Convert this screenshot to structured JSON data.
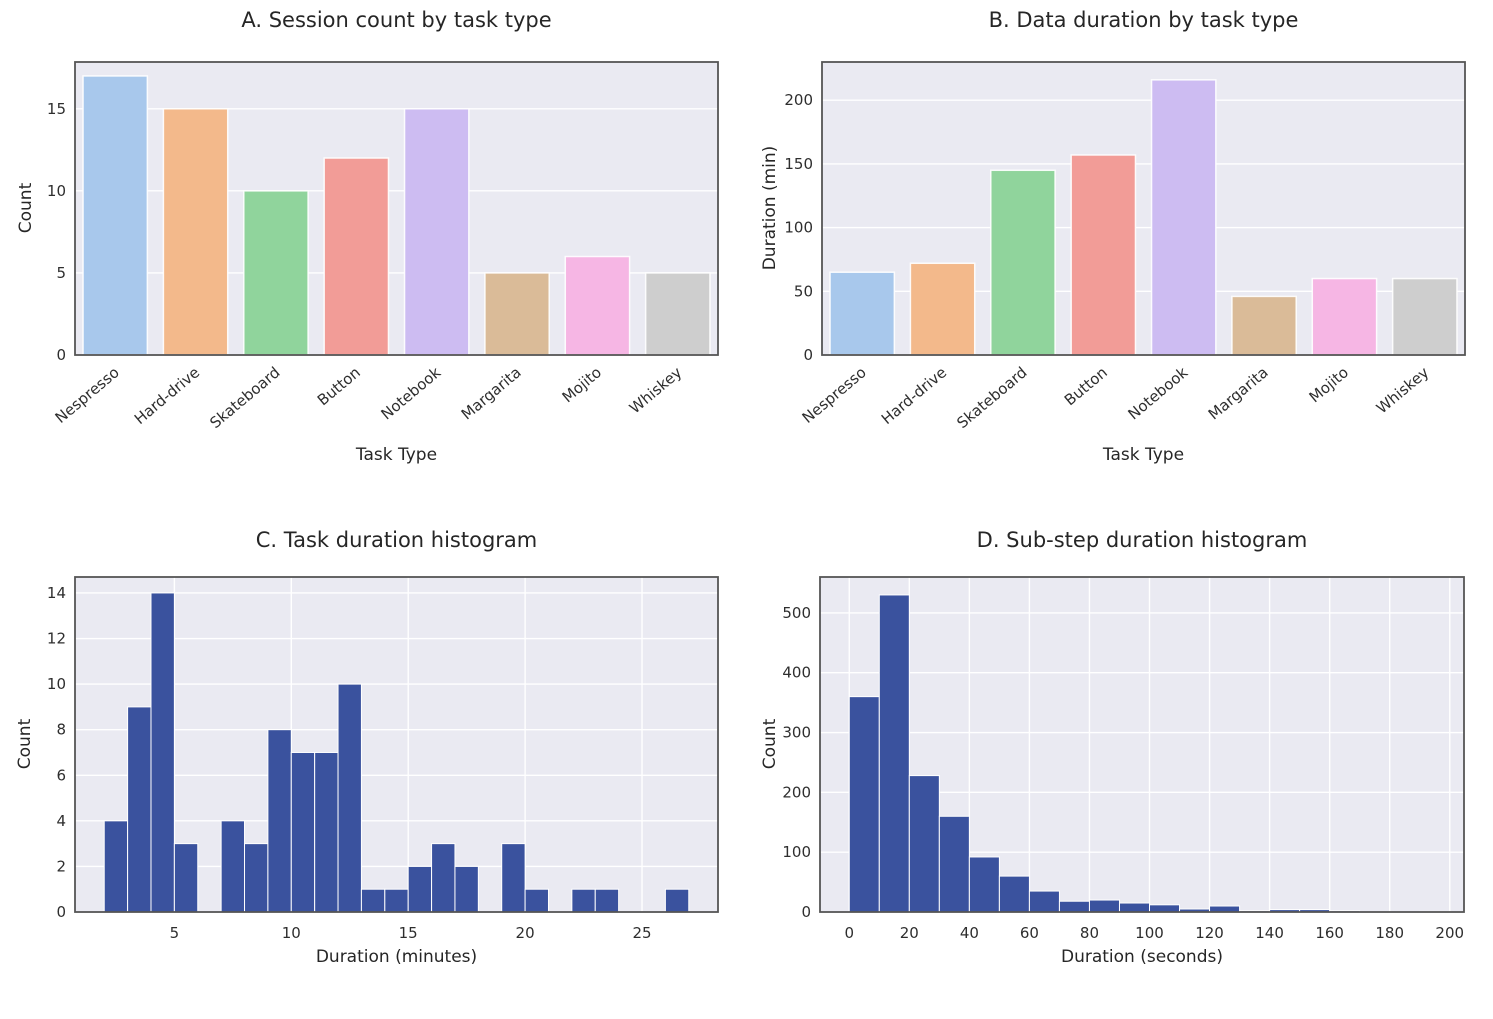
{
  "style": {
    "figure_bg": "#ffffff",
    "plot_bg": "#eaeaf2",
    "grid": "#ffffff",
    "spine": "#555555",
    "text": "#262626",
    "hist_color": "#3a529e"
  },
  "chart_data": [
    {
      "type": "bar",
      "title": "A. Session count by task type",
      "xlabel": "Task Type",
      "ylabel": "Count",
      "categories": [
        "Nespresso",
        "Hard-drive",
        "Skateboard",
        "Button",
        "Notebook",
        "Margarita",
        "Mojito",
        "Whiskey"
      ],
      "values": [
        17,
        15,
        10,
        12,
        15,
        5,
        6,
        5
      ],
      "colors": [
        "#a8c8ec",
        "#f3b98b",
        "#90d49c",
        "#f29c97",
        "#cdbcf2",
        "#dabb98",
        "#f6b6e4",
        "#cecece"
      ],
      "yticks": [
        0,
        5,
        10,
        15
      ],
      "ylim": [
        0,
        17.85
      ],
      "grid": "horizontal",
      "legend": "none"
    },
    {
      "type": "bar",
      "title": "B. Data duration by task type",
      "xlabel": "Task Type",
      "ylabel": "Duration (min)",
      "categories": [
        "Nespresso",
        "Hard-drive",
        "Skateboard",
        "Button",
        "Notebook",
        "Margarita",
        "Mojito",
        "Whiskey"
      ],
      "values": [
        65,
        72,
        145,
        157,
        216,
        46,
        60,
        60
      ],
      "colors": [
        "#a8c8ec",
        "#f3b98b",
        "#90d49c",
        "#f29c97",
        "#cdbcf2",
        "#dabb98",
        "#f6b6e4",
        "#cecece"
      ],
      "yticks": [
        0,
        50,
        100,
        150,
        200
      ],
      "ylim": [
        0,
        230
      ],
      "grid": "horizontal",
      "legend": "none"
    },
    {
      "type": "histogram",
      "title": "C. Task duration histogram",
      "xlabel": "Duration (minutes)",
      "ylabel": "Count",
      "bin_start": 2,
      "bin_width": 1,
      "counts": [
        4,
        9,
        14,
        3,
        0,
        4,
        3,
        8,
        7,
        7,
        10,
        1,
        1,
        2,
        3,
        2,
        0,
        3,
        1,
        0,
        1,
        1,
        0,
        0,
        1
      ],
      "color": "#3a529e",
      "xticks": [
        5,
        10,
        15,
        20,
        25
      ],
      "yticks": [
        0,
        2,
        4,
        6,
        8,
        10,
        12,
        14
      ],
      "xlim": [
        0.75,
        28.25
      ],
      "ylim": [
        0,
        14.7
      ],
      "grid": "both",
      "legend": "none"
    },
    {
      "type": "histogram",
      "title": "D. Sub-step duration histogram",
      "xlabel": "Duration (seconds)",
      "ylabel": "Count",
      "bin_start": 0,
      "bin_width": 10,
      "counts": [
        360,
        530,
        228,
        160,
        92,
        60,
        35,
        18,
        20,
        15,
        12,
        5,
        10,
        2,
        4,
        4,
        2,
        0,
        0,
        1
      ],
      "color": "#3a529e",
      "xticks": [
        0,
        20,
        40,
        60,
        80,
        100,
        120,
        140,
        160,
        180,
        200
      ],
      "yticks": [
        0,
        100,
        200,
        300,
        400,
        500
      ],
      "xlim": [
        -9.75,
        204.75
      ],
      "ylim": [
        0,
        560
      ],
      "grid": "both",
      "legend": "none"
    }
  ]
}
